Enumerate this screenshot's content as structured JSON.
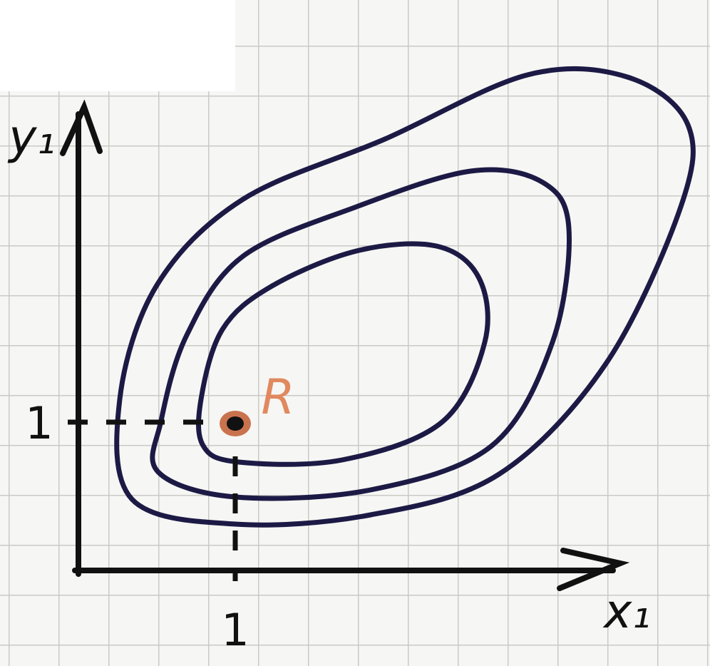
{
  "axes": {
    "y_label": "y₁",
    "x_label": "x₁",
    "x_tick": "1",
    "y_tick": "1"
  },
  "point": {
    "label": "R"
  }
}
